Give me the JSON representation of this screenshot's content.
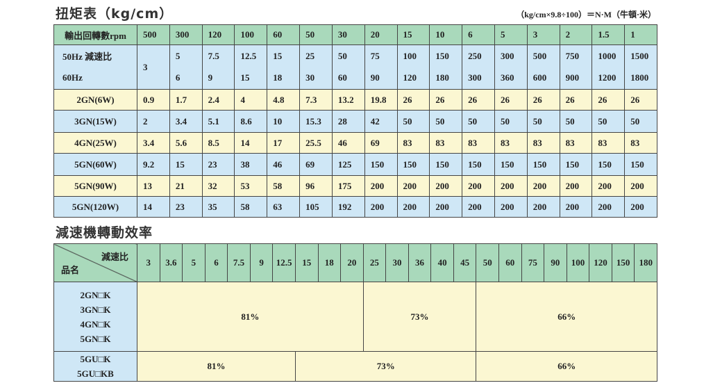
{
  "torque": {
    "title": "扭矩表（kg/cm）",
    "note": "（kg/cm×9.8÷100）＝N·M（牛頓·米）",
    "header_label": "輸出回轉數rpm",
    "rpm": [
      "500",
      "300",
      "120",
      "100",
      "60",
      "50",
      "30",
      "20",
      "15",
      "10",
      "6",
      "5",
      "3",
      "2",
      "1.5",
      "1"
    ],
    "ratio_label_50": "50Hz 減速比",
    "ratio_label_60": "60Hz",
    "ratio_shared": "3",
    "ratio_50": [
      "5",
      "7.5",
      "12.5",
      "15",
      "25",
      "50",
      "75",
      "100",
      "150",
      "250",
      "300",
      "500",
      "750",
      "1000",
      "1500"
    ],
    "ratio_60": [
      "6",
      "9",
      "15",
      "18",
      "30",
      "60",
      "90",
      "120",
      "180",
      "300",
      "360",
      "600",
      "900",
      "1200",
      "1800"
    ],
    "rows": [
      {
        "model": "2GN(6W)",
        "values": [
          "0.9",
          "1.7",
          "2.4",
          "4",
          "4.8",
          "7.3",
          "13.2",
          "19.8",
          "26",
          "26",
          "26",
          "26",
          "26",
          "26",
          "26",
          "26"
        ]
      },
      {
        "model": "3GN(15W)",
        "values": [
          "2",
          "3.4",
          "5.1",
          "8.6",
          "10",
          "15.3",
          "28",
          "42",
          "50",
          "50",
          "50",
          "50",
          "50",
          "50",
          "50",
          "50"
        ]
      },
      {
        "model": "4GN(25W)",
        "values": [
          "3.4",
          "5.6",
          "8.5",
          "14",
          "17",
          "25.5",
          "46",
          "69",
          "83",
          "83",
          "83",
          "83",
          "83",
          "83",
          "83",
          "83"
        ]
      },
      {
        "model": "5GN(60W)",
        "values": [
          "9.2",
          "15",
          "23",
          "38",
          "46",
          "69",
          "125",
          "150",
          "150",
          "150",
          "150",
          "150",
          "150",
          "150",
          "150",
          "150"
        ]
      },
      {
        "model": "5GN(90W)",
        "values": [
          "13",
          "21",
          "32",
          "53",
          "58",
          "96",
          "175",
          "200",
          "200",
          "200",
          "200",
          "200",
          "200",
          "200",
          "200",
          "200"
        ]
      },
      {
        "model": "5GN(120W)",
        "values": [
          "14",
          "23",
          "35",
          "58",
          "63",
          "105",
          "192",
          "200",
          "200",
          "200",
          "200",
          "200",
          "200",
          "200",
          "200",
          "200"
        ]
      }
    ]
  },
  "efficiency": {
    "title": "減速機轉動效率",
    "ratio_label": "減速比",
    "model_label": "品名",
    "ratios": [
      "3",
      "3.6",
      "5",
      "6",
      "7.5",
      "9",
      "12.5",
      "15",
      "18",
      "20",
      "25",
      "30",
      "36",
      "40",
      "45",
      "50",
      "60",
      "75",
      "90",
      "100",
      "120",
      "150",
      "180"
    ],
    "groups": [
      {
        "models": [
          "2GN□K",
          "3GN□K",
          "4GN□K",
          "5GN□K"
        ],
        "efficiencies": [
          "81%",
          "73%",
          "66%"
        ]
      },
      {
        "models": [
          "5GU□K",
          "5GU□KB"
        ],
        "efficiencies": [
          "81%",
          "73%",
          "66%"
        ]
      }
    ]
  }
}
